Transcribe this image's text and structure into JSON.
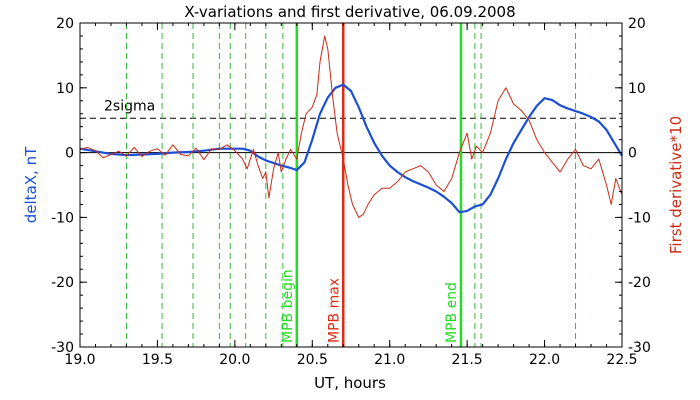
{
  "chart_data": {
    "type": "line",
    "title": "X-variations and first derivative, 06.09.2008",
    "xlabel": "UT, hours",
    "ylabel_left": "deltaX, nT",
    "ylabel_right": "First derivative*10",
    "xlim": [
      19.0,
      22.5
    ],
    "ylim_left": [
      -30,
      20
    ],
    "ylim_right": [
      -30,
      20
    ],
    "x_ticks": [
      "19.0",
      "19.5",
      "20.0",
      "20.5",
      "21.0",
      "21.5",
      "22.0",
      "22.5"
    ],
    "y_ticks_left": [
      "-30",
      "-20",
      "-10",
      "0",
      "10",
      "20"
    ],
    "y_ticks_right": [
      "-30",
      "-20",
      "-10",
      "0",
      "10",
      "20"
    ],
    "threshold": {
      "label": "2sigma",
      "y": 5.3
    },
    "colors": {
      "deltaX": "#1a4fd6",
      "derivative": "#cc2a14",
      "dashed_green": "#33bb33",
      "mpb_green": "#22dd22",
      "mpb_red": "#dd2a14"
    },
    "dashed_markers_x": [
      19.3,
      19.53,
      19.73,
      19.9,
      19.97,
      20.07,
      20.2,
      20.31,
      21.55,
      21.59,
      22.2
    ],
    "vertical_markers": [
      {
        "label": "MPB begin",
        "x": 20.4,
        "color": "#22dd22"
      },
      {
        "label": "MPB max",
        "x": 20.7,
        "color": "#dd2a14"
      },
      {
        "label": "MPB end",
        "x": 21.46,
        "color": "#22dd22"
      }
    ],
    "series": [
      {
        "name": "deltaX, nT",
        "x": [
          19.0,
          19.1,
          19.2,
          19.3,
          19.4,
          19.5,
          19.6,
          19.7,
          19.8,
          19.9,
          20.0,
          20.05,
          20.1,
          20.15,
          20.2,
          20.25,
          20.3,
          20.35,
          20.4,
          20.45,
          20.5,
          20.55,
          20.6,
          20.65,
          20.7,
          20.75,
          20.8,
          20.85,
          20.9,
          20.95,
          21.0,
          21.05,
          21.1,
          21.15,
          21.2,
          21.25,
          21.3,
          21.35,
          21.4,
          21.45,
          21.5,
          21.55,
          21.6,
          21.65,
          21.7,
          21.75,
          21.8,
          21.85,
          21.9,
          21.95,
          22.0,
          22.05,
          22.1,
          22.15,
          22.2,
          22.25,
          22.3,
          22.35,
          22.4,
          22.45,
          22.5
        ],
        "y": [
          0.6,
          0.2,
          -0.2,
          -0.4,
          -0.3,
          -0.2,
          0.0,
          0.1,
          0.3,
          0.6,
          0.6,
          0.6,
          0.3,
          -0.6,
          -1.2,
          -1.6,
          -2.0,
          -2.3,
          -2.7,
          -1.5,
          2.0,
          6.0,
          8.5,
          10.0,
          10.5,
          9.5,
          7.0,
          4.0,
          1.5,
          -0.5,
          -2.0,
          -3.0,
          -3.8,
          -4.4,
          -4.9,
          -5.4,
          -6.0,
          -6.8,
          -7.8,
          -9.2,
          -9.0,
          -8.3,
          -8.0,
          -6.5,
          -4.0,
          -1.0,
          1.5,
          3.5,
          5.5,
          7.2,
          8.4,
          8.1,
          7.3,
          6.8,
          6.4,
          6.0,
          5.5,
          4.8,
          3.5,
          1.5,
          -0.5
        ]
      },
      {
        "name": "First derivative*10",
        "x": [
          19.0,
          19.05,
          19.1,
          19.15,
          19.2,
          19.25,
          19.3,
          19.35,
          19.4,
          19.45,
          19.5,
          19.55,
          19.6,
          19.65,
          19.7,
          19.75,
          19.8,
          19.85,
          19.9,
          19.95,
          20.0,
          20.05,
          20.08,
          20.12,
          20.15,
          20.18,
          20.2,
          20.22,
          20.25,
          20.28,
          20.3,
          20.33,
          20.36,
          20.4,
          20.43,
          20.46,
          20.5,
          20.53,
          20.55,
          20.58,
          20.6,
          20.63,
          20.66,
          20.7,
          20.73,
          20.76,
          20.8,
          20.83,
          20.86,
          20.9,
          20.95,
          21.0,
          21.05,
          21.1,
          21.15,
          21.2,
          21.25,
          21.3,
          21.35,
          21.4,
          21.45,
          21.5,
          21.53,
          21.56,
          21.6,
          21.65,
          21.7,
          21.75,
          21.8,
          21.85,
          21.9,
          21.95,
          22.0,
          22.05,
          22.1,
          22.15,
          22.2,
          22.25,
          22.3,
          22.35,
          22.4,
          22.43,
          22.46,
          22.5
        ],
        "y": [
          0.5,
          0.8,
          0.3,
          -0.8,
          -0.3,
          0.2,
          -0.5,
          0.8,
          -0.6,
          0.2,
          0.6,
          -0.4,
          1.2,
          -0.3,
          -0.5,
          0.7,
          -1.1,
          0.6,
          0.5,
          1.2,
          0.3,
          -1.0,
          -2.5,
          0.5,
          -2.0,
          -4.0,
          -3.0,
          -7.0,
          -2.5,
          0.0,
          -3.0,
          -1.0,
          0.5,
          -1.0,
          3.0,
          6.0,
          7.0,
          9.0,
          14.0,
          18.0,
          16.0,
          9.0,
          3.0,
          -1.0,
          -5.0,
          -8.0,
          -10.0,
          -9.5,
          -8.0,
          -6.5,
          -5.5,
          -5.5,
          -4.5,
          -3.0,
          -2.5,
          -2.0,
          -3.0,
          -5.0,
          -6.0,
          -4.0,
          0.0,
          3.0,
          -1.0,
          1.0,
          0.0,
          3.0,
          8.0,
          10.0,
          7.5,
          6.5,
          5.0,
          2.0,
          0.0,
          -1.5,
          -3.0,
          -1.0,
          0.5,
          -2.0,
          -2.5,
          -1.0,
          -5.0,
          -8.0,
          -4.0,
          -6.5
        ]
      }
    ]
  }
}
